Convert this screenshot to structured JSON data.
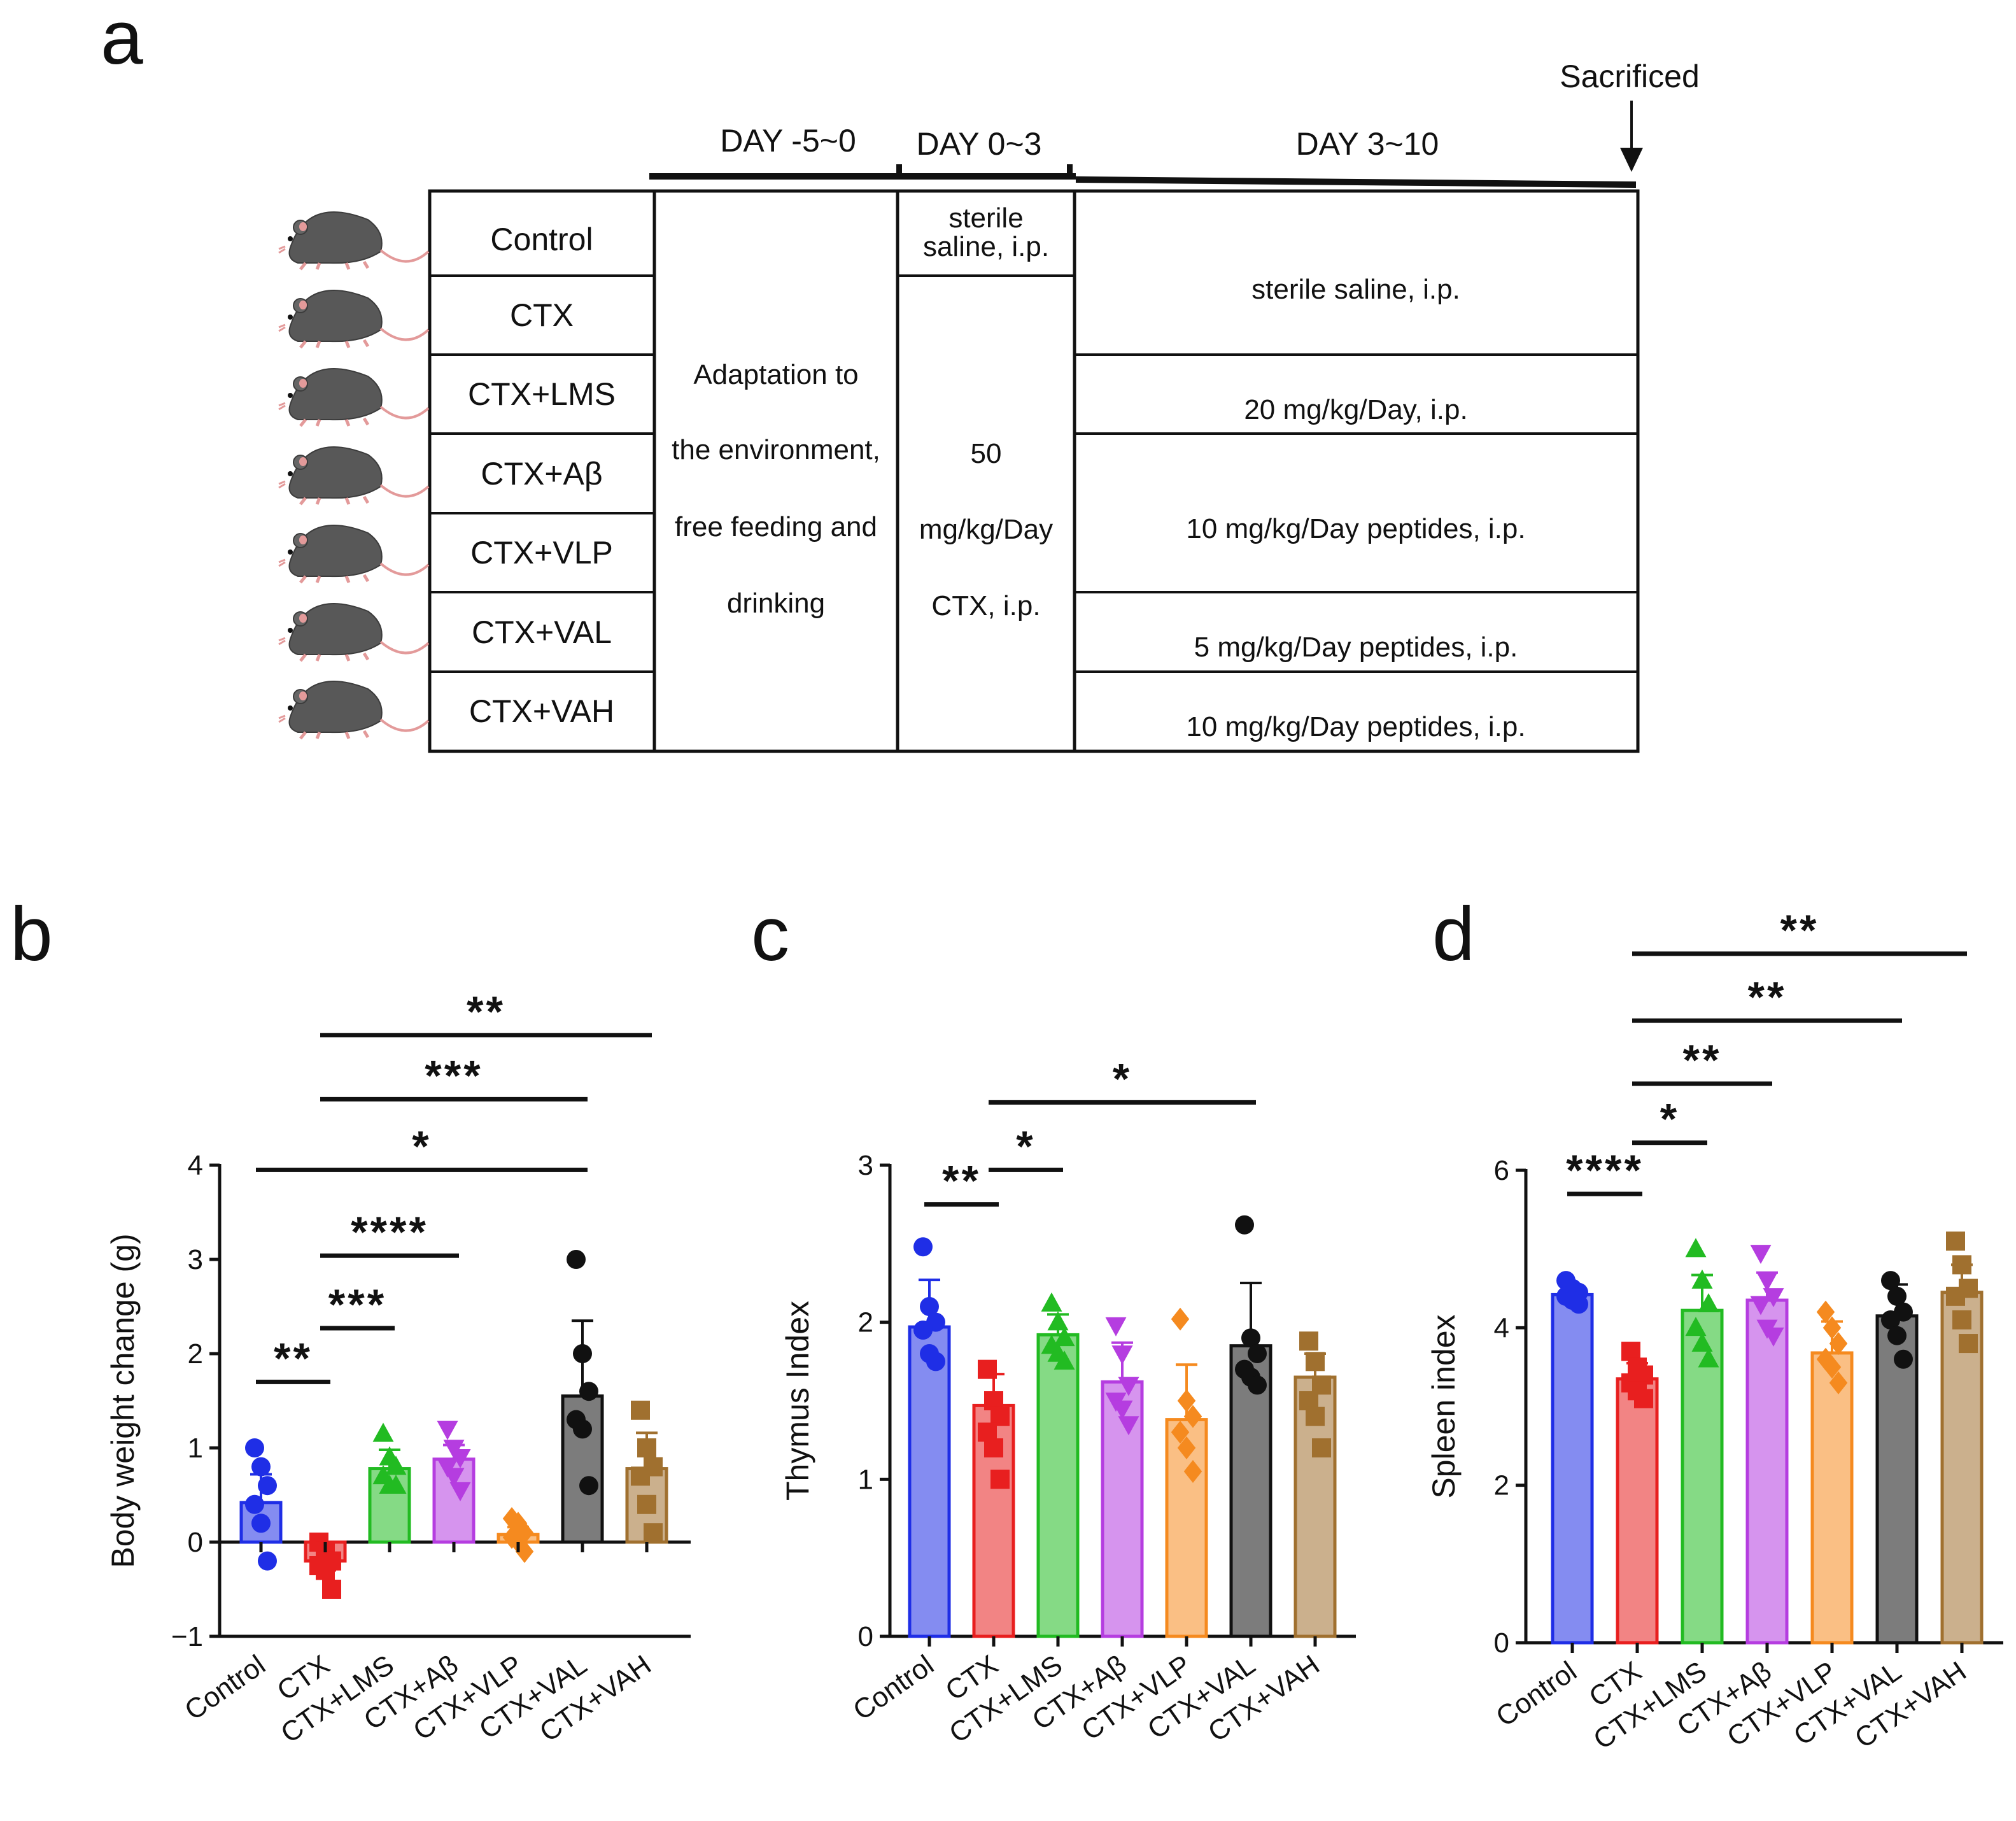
{
  "panels": {
    "a": "a",
    "b": "b",
    "c": "c",
    "d": "d"
  },
  "protocol": {
    "sacrificed": "Sacrificed",
    "phases": [
      "DAY  -5~0",
      "DAY  0~3",
      "DAY  3~10"
    ],
    "groups": [
      "Control",
      "CTX",
      "CTX+LMS",
      "CTX+Aβ",
      "CTX+VLP",
      "CTX+VAL",
      "CTX+VAH"
    ],
    "adaptation_lines": [
      "Adaptation to",
      "the environment,",
      "free feeding and",
      "drinking"
    ],
    "control_saline_lines": [
      "sterile",
      "saline,  i.p."
    ],
    "ctx_dose_lines": [
      "50",
      "mg/kg/Day",
      "CTX,  i.p."
    ],
    "treatments": [
      "sterile saline,  i.p.",
      "20 mg/kg/Day,  i.p.",
      "10 mg/kg/Day peptides, i.p.",
      "5 mg/kg/Day peptides, i.p.",
      "10 mg/kg/Day peptides, i.p."
    ]
  },
  "colors": {
    "Control": "#1f2ee6",
    "CTX": "#e81f1f",
    "CTX+LMS": "#22bb22",
    "CTX+Aβ": "#b53de0",
    "CTX+VLP": "#f58a1f",
    "CTX+VAL": "#111111",
    "CTX+VAH": "#a0702f"
  },
  "chart_data": [
    {
      "type": "bar",
      "panel": "b",
      "ylabel": "Body weight change (g)",
      "categories": [
        "Control",
        "CTX",
        "CTX+LMS",
        "CTX+Aβ",
        "CTX+VLP",
        "CTX+VAL",
        "CTX+VAH"
      ],
      "markers": [
        "circle",
        "square",
        "triangle-up",
        "triangle-down",
        "diamond",
        "circle",
        "square"
      ],
      "values": [
        0.42,
        -0.2,
        0.78,
        0.88,
        0.08,
        1.55,
        0.78
      ],
      "errors": [
        0.3,
        0.1,
        0.2,
        0.15,
        0.08,
        0.8,
        0.38
      ],
      "points": [
        [
          1.0,
          0.8,
          0.6,
          0.4,
          0.2,
          -0.2
        ],
        [
          0.0,
          -0.1,
          -0.2,
          -0.25,
          -0.3,
          -0.5
        ],
        [
          1.15,
          0.9,
          0.8,
          0.7,
          0.6,
          0.6
        ],
        [
          1.2,
          1.0,
          0.9,
          0.8,
          0.7,
          0.55
        ],
        [
          0.25,
          0.2,
          0.1,
          0.05,
          0.0,
          -0.1
        ],
        [
          3.0,
          2.0,
          1.6,
          1.3,
          1.2,
          0.6
        ],
        [
          1.4,
          1.0,
          0.8,
          0.7,
          0.4,
          0.1
        ]
      ],
      "ylim": [
        -1,
        4
      ],
      "yticks": [
        -1,
        0,
        1,
        2,
        3,
        4
      ],
      "ytick_labels": [
        "−1",
        "0",
        "1",
        "2",
        "3",
        "4"
      ],
      "significance": [
        {
          "from": 0,
          "to": 1,
          "label": "**",
          "y": 1.7
        },
        {
          "from": 1,
          "to": 2,
          "label": "***",
          "y": 2.27
        },
        {
          "from": 1,
          "to": 3,
          "label": "****",
          "y": 3.04
        },
        {
          "from": 0,
          "to": 5,
          "label": "*",
          "y": 3.95
        },
        {
          "from": 1,
          "to": 5,
          "label": "***",
          "y": 4.7
        },
        {
          "from": 1,
          "to": 6,
          "label": "**",
          "y": 5.38
        }
      ]
    },
    {
      "type": "bar",
      "panel": "c",
      "ylabel": "Thymus Index",
      "categories": [
        "Control",
        "CTX",
        "CTX+LMS",
        "CTX+Aβ",
        "CTX+VLP",
        "CTX+VAL",
        "CTX+VAH"
      ],
      "markers": [
        "circle",
        "square",
        "triangle-up",
        "triangle-down",
        "diamond",
        "circle",
        "square"
      ],
      "values": [
        1.97,
        1.47,
        1.92,
        1.62,
        1.38,
        1.85,
        1.65
      ],
      "errors": [
        0.3,
        0.2,
        0.13,
        0.25,
        0.35,
        0.4,
        0.15
      ],
      "points": [
        [
          2.48,
          2.1,
          2.0,
          1.95,
          1.8,
          1.75
        ],
        [
          1.7,
          1.5,
          1.4,
          1.3,
          1.2,
          1.0
        ],
        [
          2.12,
          2.0,
          1.9,
          1.85,
          1.8,
          1.75
        ],
        [
          1.98,
          1.8,
          1.6,
          1.5,
          1.45,
          1.35
        ],
        [
          2.02,
          1.5,
          1.4,
          1.3,
          1.2,
          1.05
        ],
        [
          2.62,
          1.9,
          1.8,
          1.7,
          1.65,
          1.6
        ],
        [
          1.88,
          1.75,
          1.6,
          1.5,
          1.4,
          1.2
        ]
      ],
      "ylim": [
        0,
        3
      ],
      "yticks": [
        0,
        1,
        2,
        3
      ],
      "ytick_labels": [
        "0",
        "1",
        "2",
        "3"
      ],
      "significance": [
        {
          "from": 0,
          "to": 1,
          "label": "**",
          "y": 2.75
        },
        {
          "from": 1,
          "to": 2,
          "label": "*",
          "y": 2.97
        },
        {
          "from": 1,
          "to": 5,
          "label": "*",
          "y": 3.4
        }
      ]
    },
    {
      "type": "bar",
      "panel": "d",
      "ylabel": "Spleen index",
      "categories": [
        "Control",
        "CTX",
        "CTX+LMS",
        "CTX+Aβ",
        "CTX+VLP",
        "CTX+VAL",
        "CTX+VAH"
      ],
      "markers": [
        "circle",
        "square",
        "triangle-up",
        "triangle-down",
        "diamond",
        "circle",
        "square"
      ],
      "values": [
        4.42,
        3.35,
        4.22,
        4.35,
        3.68,
        4.15,
        4.45
      ],
      "errors": [
        0.1,
        0.2,
        0.45,
        0.35,
        0.4,
        0.4,
        0.35
      ],
      "points": [
        [
          4.6,
          4.5,
          4.45,
          4.4,
          4.35,
          4.3
        ],
        [
          3.7,
          3.5,
          3.4,
          3.3,
          3.2,
          3.1
        ],
        [
          5.0,
          4.6,
          4.3,
          4.0,
          3.8,
          3.6
        ],
        [
          4.95,
          4.6,
          4.4,
          4.3,
          4.0,
          3.9
        ],
        [
          4.2,
          4.0,
          3.8,
          3.6,
          3.5,
          3.3
        ],
        [
          4.6,
          4.4,
          4.2,
          4.1,
          3.9,
          3.6
        ],
        [
          5.1,
          4.8,
          4.5,
          4.4,
          4.1,
          3.8
        ]
      ],
      "ylim": [
        0,
        6
      ],
      "yticks": [
        0,
        2,
        4,
        6
      ],
      "ytick_labels": [
        "0",
        "2",
        "4",
        "6"
      ],
      "significance": [
        {
          "from": 0,
          "to": 1,
          "label": "****",
          "y": 5.7
        },
        {
          "from": 1,
          "to": 2,
          "label": "*",
          "y": 6.35
        },
        {
          "from": 1,
          "to": 3,
          "label": "**",
          "y": 7.1
        },
        {
          "from": 1,
          "to": 5,
          "label": "**",
          "y": 7.9
        },
        {
          "from": 1,
          "to": 6,
          "label": "**",
          "y": 8.75
        }
      ]
    }
  ]
}
